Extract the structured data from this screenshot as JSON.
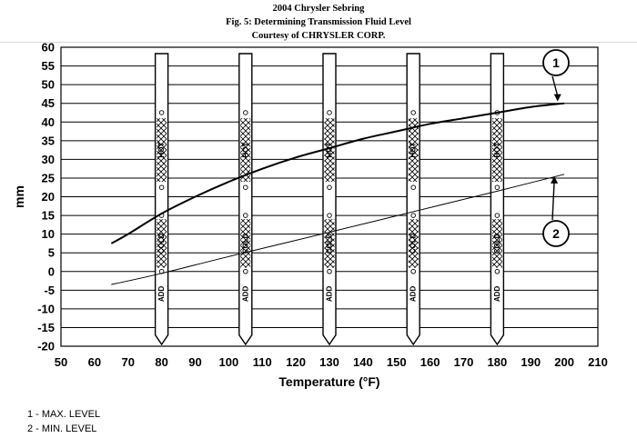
{
  "header": {
    "line1": "2004 Chrysler Sebring",
    "line2": "Fig. 5: Determining Transmission Fluid Level",
    "line3": "Courtesy of CHRYSLER CORP."
  },
  "legend": {
    "item1": "1 - MAX. LEVEL",
    "item2": "2 - MIN. LEVEL"
  },
  "chart_data": {
    "type": "line",
    "title": "Fig. 5: Determining Transmission Fluid Level",
    "xlabel": "Temperature (°F)",
    "ylabel": "mm",
    "xlim": [
      50,
      210
    ],
    "ylim": [
      -20,
      60
    ],
    "xticks": [
      50,
      60,
      70,
      80,
      90,
      100,
      110,
      120,
      130,
      140,
      150,
      160,
      170,
      180,
      190,
      200,
      210
    ],
    "yticks": [
      60,
      55,
      50,
      45,
      40,
      35,
      30,
      25,
      20,
      15,
      10,
      5,
      0,
      -5,
      -10,
      -15,
      -20
    ],
    "grid": "horizontal",
    "series": [
      {
        "name": "1 - MAX. LEVEL",
        "x": [
          65,
          70,
          80,
          90,
          100,
          110,
          120,
          130,
          140,
          150,
          160,
          170,
          180,
          190,
          200
        ],
        "y": [
          7.5,
          10,
          15.5,
          20,
          24,
          27.5,
          30.5,
          33,
          35.5,
          37.5,
          39.5,
          41,
          42.5,
          44,
          45
        ]
      },
      {
        "name": "2 - MIN. LEVEL",
        "x": [
          65,
          80,
          100,
          130,
          155,
          180,
          200
        ],
        "y": [
          -3.5,
          -0.5,
          4,
          10.5,
          16,
          21.5,
          26
        ]
      }
    ],
    "dipsticks": {
      "x": [
        80,
        105,
        130,
        155,
        180
      ],
      "labels": [
        "ADD",
        "COLD",
        "HOT"
      ]
    },
    "callouts": [
      "1",
      "2"
    ]
  }
}
